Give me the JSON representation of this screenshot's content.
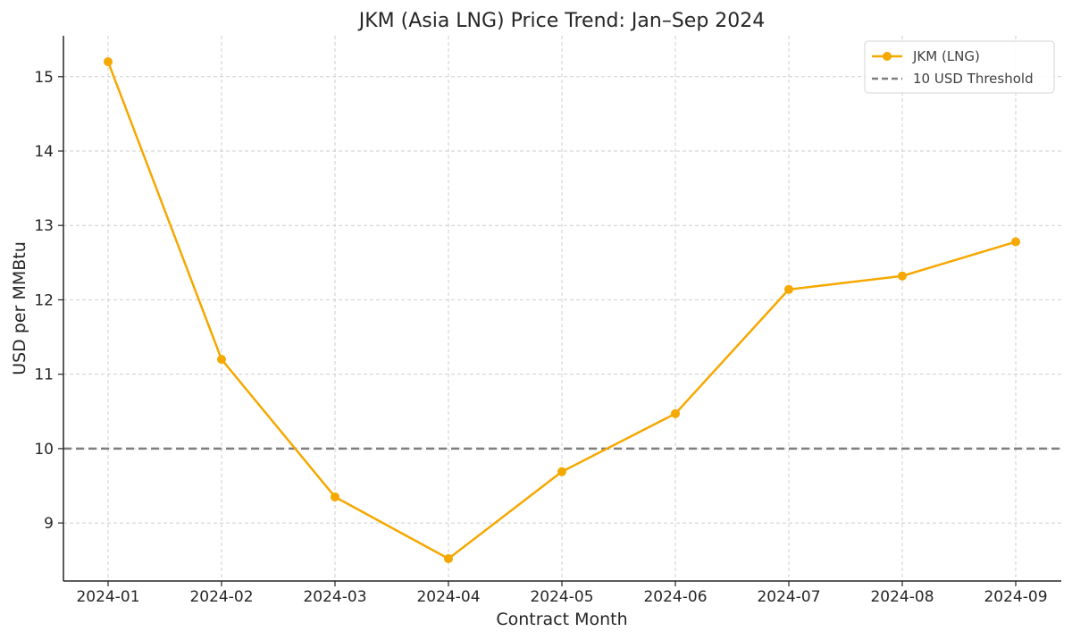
{
  "chart_data": {
    "type": "line",
    "title": "JKM (Asia LNG) Price Trend: Jan–Sep 2024",
    "xlabel": "Contract Month",
    "ylabel": "USD per MMBtu",
    "categories": [
      "2024-01",
      "2024-02",
      "2024-03",
      "2024-04",
      "2024-05",
      "2024-06",
      "2024-07",
      "2024-08",
      "2024-09"
    ],
    "series": [
      {
        "name": "JKM (LNG)",
        "values": [
          15.2,
          11.2,
          9.35,
          8.52,
          9.69,
          10.47,
          12.14,
          12.32,
          12.78
        ],
        "color": "#f5a800",
        "marker": "circle"
      }
    ],
    "reference_lines": [
      {
        "name": "10 USD Threshold",
        "y": 10,
        "color": "#7f7f7f",
        "style": "dashed"
      }
    ],
    "ylim": [
      8.22,
      15.55
    ],
    "yticks": [
      9,
      10,
      11,
      12,
      13,
      14,
      15
    ],
    "grid": true,
    "legend": "top-right"
  }
}
